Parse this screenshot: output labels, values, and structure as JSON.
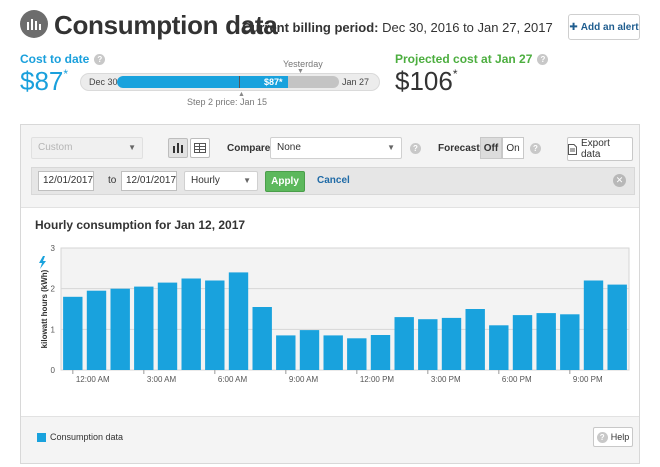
{
  "header": {
    "title": "Consumption data",
    "billing_label": "Current billing period:",
    "billing_range": "Dec 30, 2016 to Jan 27, 2017",
    "add_alert": "Add an alert"
  },
  "cost": {
    "label": "Cost to date",
    "value": "$87",
    "asterisk": "*",
    "bar_start": "Dec 30",
    "bar_end": "Jan 27",
    "bar_value": "$87*",
    "bar_fill_fraction": 0.77,
    "step_fraction": 0.55,
    "yesterday_label": "Yesterday",
    "step_label": "Step 2 price: Jan 15"
  },
  "projected": {
    "label": "Projected cost at Jan 27",
    "value": "$106",
    "asterisk": "*"
  },
  "toolbar": {
    "range_select": "Custom",
    "compare_label": "Compare",
    "compare_value": "None",
    "forecast_label": "Forecast",
    "forecast_off": "Off",
    "forecast_on": "On",
    "export": "Export data"
  },
  "datebar": {
    "from": "12/01/2017",
    "to_label": "to",
    "to": "12/01/2017",
    "interval": "Hourly",
    "apply": "Apply",
    "cancel": "Cancel"
  },
  "chart_title": "Hourly consumption for Jan 12, 2017",
  "chart_data": {
    "type": "bar",
    "title": "Hourly consumption for Jan 12, 2017",
    "ylabel": "kilowatt hours (kWh)",
    "ylim": [
      0,
      3
    ],
    "yticks": [
      "0",
      "1",
      "2",
      "3"
    ],
    "xticks": [
      "12:00 AM",
      "3:00 AM",
      "6:00 AM",
      "9:00 AM",
      "12:00 PM",
      "3:00 PM",
      "6:00 PM",
      "9:00 PM"
    ],
    "series": [
      {
        "name": "Consumption data",
        "color": "#19a2dd",
        "values": [
          1.8,
          1.95,
          2.0,
          2.05,
          2.15,
          2.25,
          2.2,
          2.4,
          1.55,
          0.85,
          0.98,
          0.85,
          0.78,
          0.86,
          1.3,
          1.25,
          1.28,
          1.5,
          1.1,
          1.35,
          1.4,
          1.37,
          2.2,
          2.1
        ]
      }
    ],
    "grid": true
  },
  "legend": {
    "label": "Consumption data"
  },
  "help": "Help"
}
